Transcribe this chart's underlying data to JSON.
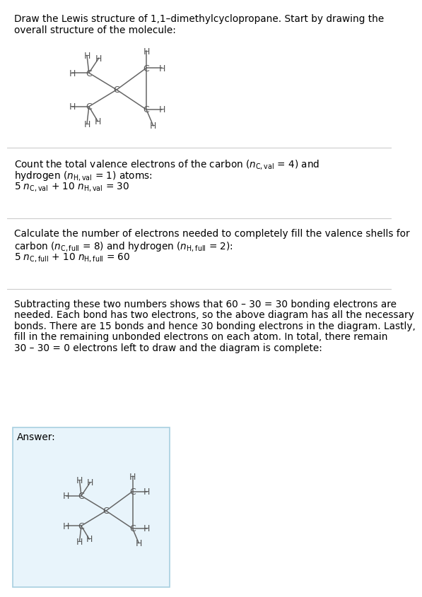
{
  "title_line1": "Draw the Lewis structure of 1,1–dimethylcyclopropane. Start by drawing the",
  "title_line2": "overall structure of the molecule:",
  "s1_line1": "Count the total valence electrons of the carbon (",
  "s1_line2": " = 1) atoms:",
  "s1_eq": "5 ",
  "s2_line1": "Calculate the number of electrons needed to completely fill the valence shells for",
  "s2_line2": " = 8) and hydrogen (",
  "s2_eq": "5 ",
  "s3_line1": "Subtracting these two numbers shows that 60 – 30 = 30 bonding electrons are",
  "s3_line2": "needed. Each bond has two electrons, so the above diagram has all the necessary",
  "s3_line3": "bonds. There are 15 bonds and hence 30 bonding electrons in the diagram. Lastly,",
  "s3_line4": "fill in the remaining unbonded electrons on each atom. In total, there remain",
  "s3_line5": "30 – 30 = 0 electrons left to draw and the diagram is complete:",
  "answer_label": "Answer:",
  "bg_color": "#ffffff",
  "answer_box_color": "#e8f4fb",
  "answer_box_border": "#a8cfe0",
  "text_color": "#000000",
  "bond_color": "#666666",
  "atom_color": "#555555",
  "div_color": "#cccccc",
  "font_size": 9.8
}
